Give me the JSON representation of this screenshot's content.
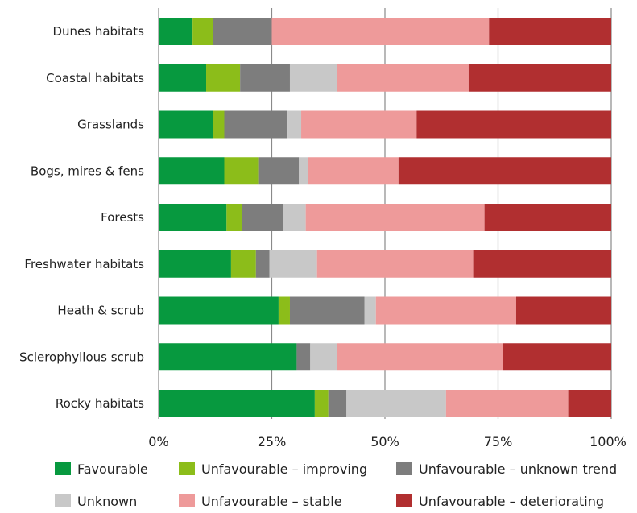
{
  "chart_data": {
    "type": "bar",
    "orientation": "horizontal",
    "stacked": true,
    "percent": true,
    "categories": [
      "Dunes habitats",
      "Coastal habitats",
      "Grasslands",
      "Bogs, mires & fens",
      "Forests",
      "Freshwater habitats",
      "Heath & scrub",
      "Sclerophyllous scrub",
      "Rocky habitats"
    ],
    "series": [
      {
        "name": "Favourable",
        "color": "#07993f",
        "values": [
          7.5,
          10.5,
          12,
          14.5,
          15,
          16,
          26.5,
          30.5,
          34.5
        ]
      },
      {
        "name": "Unfavourable – improving",
        "color": "#8cbd1a",
        "values": [
          4.5,
          7.5,
          2.5,
          7.5,
          3.5,
          5.5,
          2.5,
          0,
          3
        ]
      },
      {
        "name": "Unfavourable – unknown trend",
        "color": "#7d7d7d",
        "values": [
          13,
          11,
          14,
          9,
          9,
          3,
          16.5,
          3,
          4
        ]
      },
      {
        "name": "Unknown",
        "color": "#c8c8c8",
        "values": [
          0,
          10.5,
          3,
          2,
          5,
          10.5,
          2.5,
          6,
          22
        ]
      },
      {
        "name": "Unfavourable – stable",
        "color": "#ee9a9a",
        "values": [
          48,
          29,
          25.5,
          20,
          39.5,
          34.5,
          31,
          36.5,
          27
        ]
      },
      {
        "name": "Unfavourable – deteriorating",
        "color": "#b12f30",
        "values": [
          27,
          31.5,
          43,
          47,
          28,
          30.5,
          21,
          24,
          9.5
        ]
      }
    ],
    "x_ticks": [
      "0%",
      "25%",
      "50%",
      "75%",
      "100%"
    ],
    "xlim": [
      0,
      100
    ],
    "grid": "vertical",
    "legend_position": "bottom"
  }
}
